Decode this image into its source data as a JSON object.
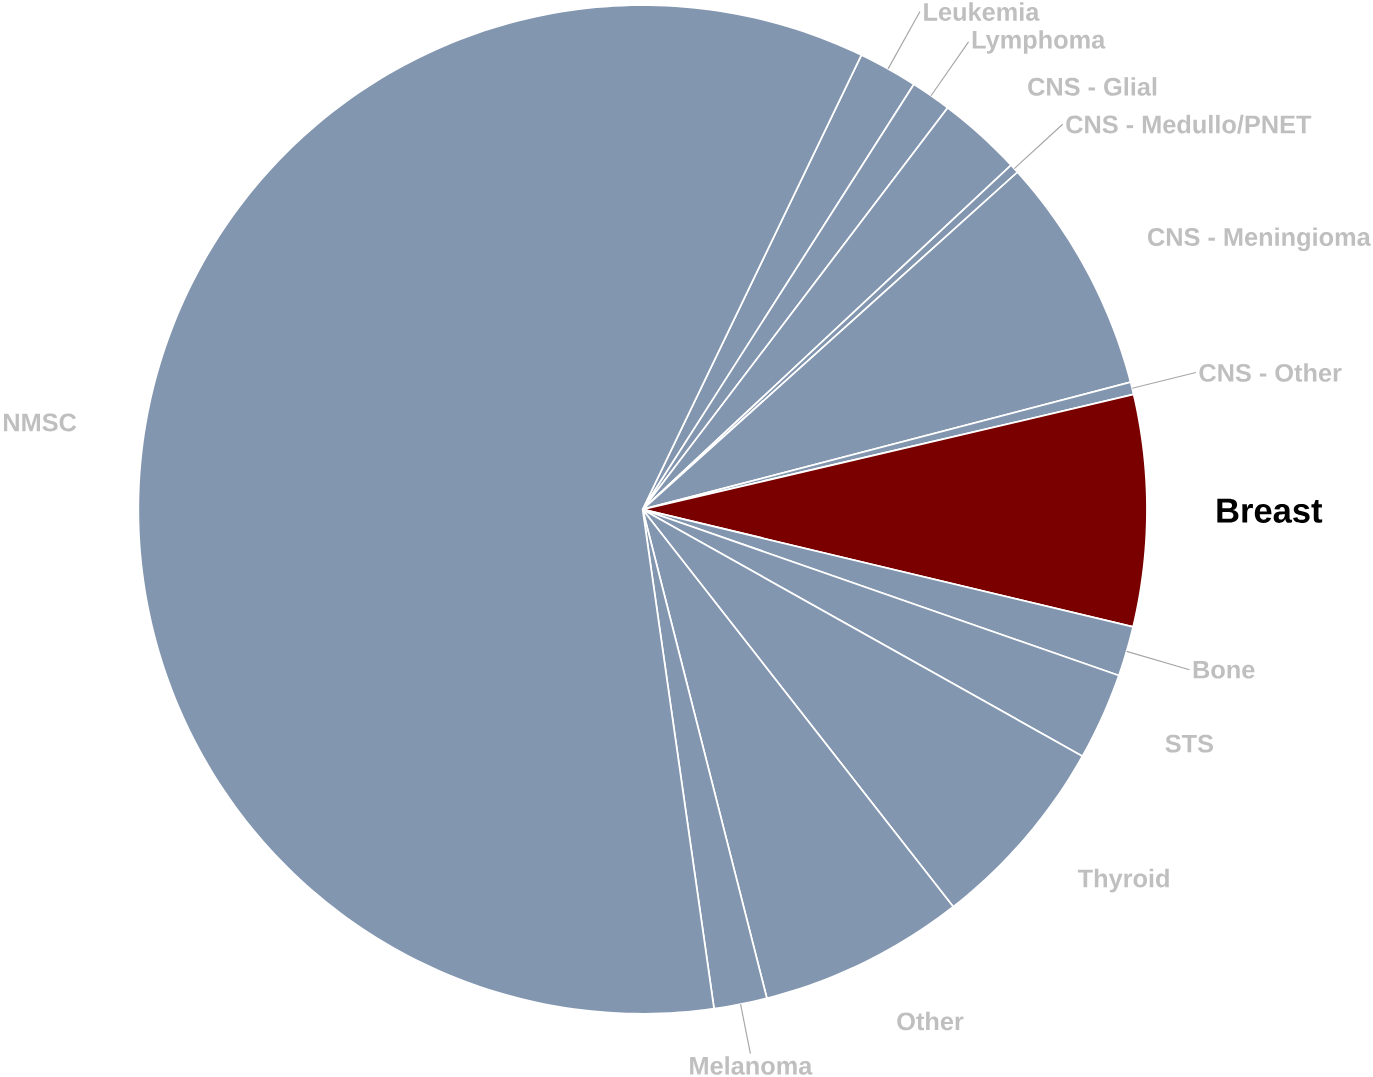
{
  "chart_data": {
    "type": "pie",
    "categories": [
      "Leukemia",
      "Lymphoma",
      "CNS - Glial",
      "CNS - Medullo/PNET",
      "CNS - Meningioma",
      "CNS - Other",
      "Breast",
      "Bone",
      "STS",
      "Thyroid",
      "Other",
      "Melanoma",
      "NMSC"
    ],
    "values": [
      1.9,
      1.3,
      2.7,
      0.3,
      7.6,
      0.4,
      7.4,
      1.6,
      2.8,
      6.3,
      6.6,
      1.7,
      59.4
    ],
    "colors": [
      "#8396b0",
      "#8396b0",
      "#8396b0",
      "#8396b0",
      "#8396b0",
      "#8396b0",
      "#7a0000",
      "#8396b0",
      "#8396b0",
      "#8396b0",
      "#8396b0",
      "#8396b0",
      "#8396b0"
    ]
  }
}
